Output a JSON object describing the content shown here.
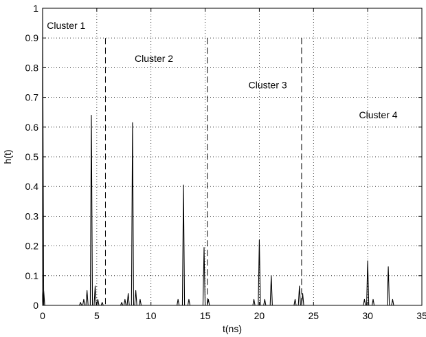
{
  "chart_data": {
    "type": "line",
    "title": "",
    "xlabel": "t(ns)",
    "ylabel": "h(t)",
    "xlim": [
      0,
      35
    ],
    "ylim": [
      0,
      1
    ],
    "xticks": [
      0,
      5,
      10,
      15,
      20,
      25,
      30,
      35
    ],
    "yticks": [
      0,
      0.1,
      0.2,
      0.3,
      0.4,
      0.5,
      0.6,
      0.7,
      0.8,
      0.9,
      1
    ],
    "grid": true,
    "grid_style": "dotted",
    "series": [
      {
        "color": "#000000",
        "impulses": [
          [
            0.0,
            1.0
          ],
          [
            0.1,
            0.05
          ],
          [
            3.5,
            0.01
          ],
          [
            3.8,
            0.02
          ],
          [
            4.1,
            0.05
          ],
          [
            4.5,
            0.64
          ],
          [
            4.85,
            0.065
          ],
          [
            5.1,
            0.02
          ],
          [
            5.5,
            0.01
          ],
          [
            7.3,
            0.01
          ],
          [
            7.6,
            0.02
          ],
          [
            7.9,
            0.04
          ],
          [
            8.3,
            0.615
          ],
          [
            8.6,
            0.05
          ],
          [
            9.0,
            0.02
          ],
          [
            12.5,
            0.02
          ],
          [
            13.0,
            0.405
          ],
          [
            13.5,
            0.02
          ],
          [
            14.9,
            0.195
          ],
          [
            15.3,
            0.02
          ],
          [
            19.5,
            0.02
          ],
          [
            20.0,
            0.22
          ],
          [
            20.5,
            0.02
          ],
          [
            21.1,
            0.1
          ],
          [
            23.3,
            0.02
          ],
          [
            23.7,
            0.065
          ],
          [
            24.0,
            0.04
          ],
          [
            29.7,
            0.02
          ],
          [
            30.0,
            0.15
          ],
          [
            30.5,
            0.02
          ],
          [
            31.9,
            0.13
          ],
          [
            32.3,
            0.02
          ]
        ]
      }
    ],
    "cluster_boundaries": [
      5.8,
      15.2,
      23.9
    ],
    "annotations": [
      {
        "text": "Cluster 1",
        "x": 0.4,
        "y": 0.93
      },
      {
        "text": "Cluster 2",
        "x": 8.5,
        "y": 0.82
      },
      {
        "text": "Cluster 3",
        "x": 19.0,
        "y": 0.73
      },
      {
        "text": "Cluster 4",
        "x": 29.2,
        "y": 0.63
      }
    ]
  }
}
